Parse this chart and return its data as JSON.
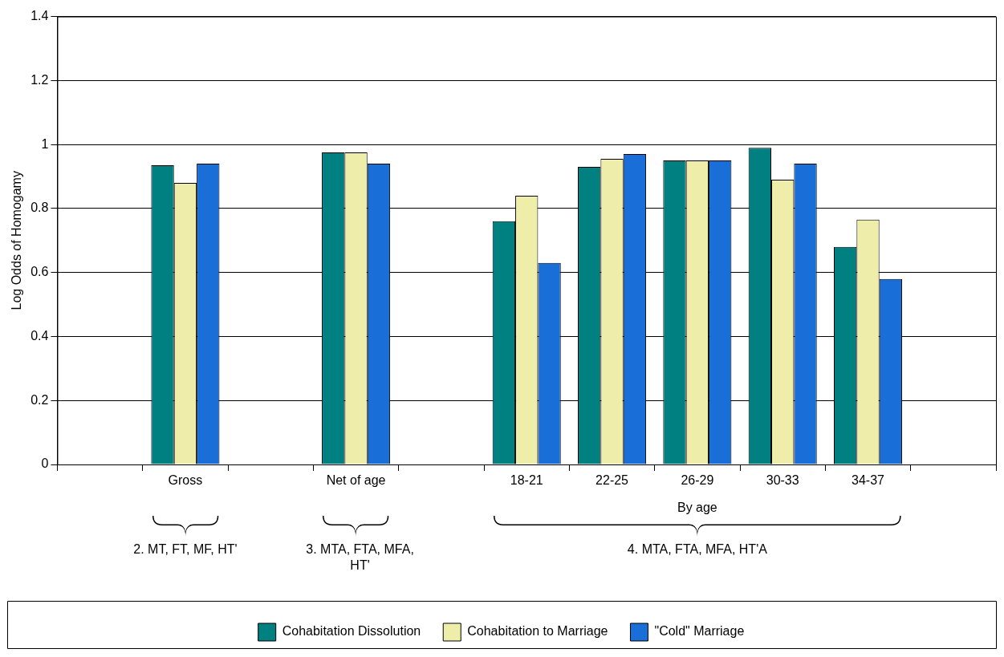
{
  "chart_data": {
    "type": "bar",
    "ylabel": "Log Odds of Homogamy",
    "categories": [
      null,
      "Gross",
      null,
      "Net of age",
      null,
      "18-21",
      "22-25",
      "26-29",
      "30-33",
      "34-37",
      null
    ],
    "series": [
      {
        "name": "Cohabitation Dissolution",
        "color": "#008080",
        "values": [
          null,
          0.935,
          null,
          0.975,
          null,
          0.76,
          0.93,
          0.95,
          0.99,
          0.68,
          null
        ]
      },
      {
        "name": "Cohabitation to Marriage",
        "color": "#eeeeaa",
        "values": [
          null,
          0.88,
          null,
          0.975,
          null,
          0.84,
          0.955,
          0.95,
          0.89,
          0.765,
          null
        ]
      },
      {
        "name": "\"Cold\" Marriage",
        "color": "#1a6ed8",
        "values": [
          null,
          0.94,
          null,
          0.94,
          null,
          0.63,
          0.97,
          0.95,
          0.94,
          0.58,
          null
        ]
      }
    ],
    "ylim": [
      0,
      1.4
    ],
    "yticks": [
      0,
      0.2,
      0.4,
      0.6,
      0.8,
      1,
      1.2,
      1.4
    ],
    "grid": "y",
    "legend": "bottom",
    "annotations": [
      "By age",
      "2. MT, FT, MF, HT'",
      "3. MTA, FTA, MFA, HT'",
      "4. MTA, FTA, MFA, HT'A"
    ]
  }
}
